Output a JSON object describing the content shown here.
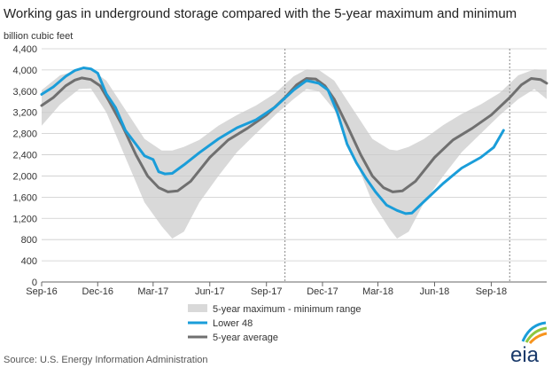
{
  "chart_data": {
    "type": "area",
    "title": "Working gas in underground storage compared with the 5-year maximum and minimum",
    "ylabel": "billion cubic feet",
    "ylim": [
      0,
      4400
    ],
    "ytick_labels": [
      "0",
      "400",
      "800",
      "1,200",
      "1,600",
      "2,000",
      "2,400",
      "2,800",
      "3,200",
      "3,600",
      "4,000",
      "4,400"
    ],
    "xlim": [
      "2016-09-01",
      "2018-11-30"
    ],
    "xtick_labels": [
      {
        "date": "2016-09-01",
        "label": "Sep-16"
      },
      {
        "date": "2016-12-01",
        "label": "Dec-16"
      },
      {
        "date": "2017-03-01",
        "label": "Mar-17"
      },
      {
        "date": "2017-06-01",
        "label": "Jun-17"
      },
      {
        "date": "2017-09-01",
        "label": "Sep-17"
      },
      {
        "date": "2017-12-01",
        "label": "Dec-17"
      },
      {
        "date": "2018-03-01",
        "label": "Mar-18"
      },
      {
        "date": "2018-06-01",
        "label": "Jun-18"
      },
      {
        "date": "2018-09-01",
        "label": "Sep-18"
      }
    ],
    "grid": "horizontal",
    "legend_position": "bottom",
    "vertical_markers": [
      "2017-10-01",
      "2018-10-01"
    ],
    "range": {
      "name": "5-year maximum - minimum range",
      "color": "#d9d9d9",
      "points": [
        {
          "x": "2016-09-01",
          "min": 2950,
          "max": 3620
        },
        {
          "x": "2016-10-01",
          "min": 3350,
          "max": 3900
        },
        {
          "x": "2016-11-01",
          "min": 3640,
          "max": 4000
        },
        {
          "x": "2016-11-20",
          "min": 3650,
          "max": 4010
        },
        {
          "x": "2016-12-15",
          "min": 3200,
          "max": 3800
        },
        {
          "x": "2017-01-15",
          "min": 2350,
          "max": 3250
        },
        {
          "x": "2017-02-15",
          "min": 1500,
          "max": 2700
        },
        {
          "x": "2017-03-15",
          "min": 1050,
          "max": 2480
        },
        {
          "x": "2017-04-01",
          "min": 820,
          "max": 2480
        },
        {
          "x": "2017-04-20",
          "min": 950,
          "max": 2550
        },
        {
          "x": "2017-05-15",
          "min": 1500,
          "max": 2680
        },
        {
          "x": "2017-06-15",
          "min": 2000,
          "max": 2950
        },
        {
          "x": "2017-07-15",
          "min": 2450,
          "max": 3150
        },
        {
          "x": "2017-08-15",
          "min": 2800,
          "max": 3330
        },
        {
          "x": "2017-09-15",
          "min": 3150,
          "max": 3560
        },
        {
          "x": "2017-10-15",
          "min": 3450,
          "max": 3880
        },
        {
          "x": "2017-11-05",
          "min": 3640,
          "max": 4010
        },
        {
          "x": "2017-11-25",
          "min": 3600,
          "max": 4000
        },
        {
          "x": "2017-12-20",
          "min": 3250,
          "max": 3800
        },
        {
          "x": "2018-01-20",
          "min": 2400,
          "max": 3250
        },
        {
          "x": "2018-02-20",
          "min": 1500,
          "max": 2700
        },
        {
          "x": "2018-03-20",
          "min": 1000,
          "max": 2500
        },
        {
          "x": "2018-04-01",
          "min": 820,
          "max": 2480
        },
        {
          "x": "2018-04-20",
          "min": 950,
          "max": 2550
        },
        {
          "x": "2018-05-15",
          "min": 1500,
          "max": 2700
        },
        {
          "x": "2018-06-15",
          "min": 2000,
          "max": 2960
        },
        {
          "x": "2018-07-15",
          "min": 2450,
          "max": 3170
        },
        {
          "x": "2018-08-15",
          "min": 2800,
          "max": 3350
        },
        {
          "x": "2018-09-15",
          "min": 3150,
          "max": 3570
        },
        {
          "x": "2018-10-15",
          "min": 3450,
          "max": 3900
        },
        {
          "x": "2018-11-10",
          "min": 3640,
          "max": 4010
        },
        {
          "x": "2018-11-30",
          "min": 3450,
          "max": 4000
        }
      ]
    },
    "series": [
      {
        "name": "Lower 48",
        "color": "#1a9dd9",
        "points": [
          {
            "x": "2016-09-01",
            "y": 3540
          },
          {
            "x": "2016-09-20",
            "y": 3680
          },
          {
            "x": "2016-10-10",
            "y": 3880
          },
          {
            "x": "2016-10-25",
            "y": 3990
          },
          {
            "x": "2016-11-08",
            "y": 4040
          },
          {
            "x": "2016-11-20",
            "y": 4020
          },
          {
            "x": "2016-12-01",
            "y": 3940
          },
          {
            "x": "2016-12-15",
            "y": 3550
          },
          {
            "x": "2016-12-30",
            "y": 3290
          },
          {
            "x": "2017-01-15",
            "y": 2860
          },
          {
            "x": "2017-02-01",
            "y": 2600
          },
          {
            "x": "2017-02-15",
            "y": 2380
          },
          {
            "x": "2017-03-01",
            "y": 2310
          },
          {
            "x": "2017-03-10",
            "y": 2080
          },
          {
            "x": "2017-03-20",
            "y": 2040
          },
          {
            "x": "2017-04-01",
            "y": 2050
          },
          {
            "x": "2017-04-20",
            "y": 2210
          },
          {
            "x": "2017-05-15",
            "y": 2440
          },
          {
            "x": "2017-06-15",
            "y": 2700
          },
          {
            "x": "2017-07-15",
            "y": 2910
          },
          {
            "x": "2017-08-15",
            "y": 3060
          },
          {
            "x": "2017-09-15",
            "y": 3300
          },
          {
            "x": "2017-10-15",
            "y": 3620
          },
          {
            "x": "2017-11-05",
            "y": 3800
          },
          {
            "x": "2017-11-25",
            "y": 3750
          },
          {
            "x": "2017-12-10",
            "y": 3620
          },
          {
            "x": "2017-12-25",
            "y": 3200
          },
          {
            "x": "2018-01-10",
            "y": 2600
          },
          {
            "x": "2018-01-25",
            "y": 2250
          },
          {
            "x": "2018-02-10",
            "y": 1950
          },
          {
            "x": "2018-02-25",
            "y": 1700
          },
          {
            "x": "2018-03-15",
            "y": 1450
          },
          {
            "x": "2018-04-01",
            "y": 1350
          },
          {
            "x": "2018-04-15",
            "y": 1290
          },
          {
            "x": "2018-04-25",
            "y": 1300
          },
          {
            "x": "2018-05-15",
            "y": 1520
          },
          {
            "x": "2018-06-15",
            "y": 1860
          },
          {
            "x": "2018-07-15",
            "y": 2150
          },
          {
            "x": "2018-08-15",
            "y": 2350
          },
          {
            "x": "2018-09-05",
            "y": 2540
          },
          {
            "x": "2018-09-21",
            "y": 2860
          }
        ]
      },
      {
        "name": "5-year average",
        "color": "#707070",
        "points": [
          {
            "x": "2016-09-01",
            "y": 3330
          },
          {
            "x": "2016-09-20",
            "y": 3480
          },
          {
            "x": "2016-10-10",
            "y": 3700
          },
          {
            "x": "2016-10-25",
            "y": 3810
          },
          {
            "x": "2016-11-05",
            "y": 3850
          },
          {
            "x": "2016-11-20",
            "y": 3820
          },
          {
            "x": "2016-12-05",
            "y": 3700
          },
          {
            "x": "2016-12-20",
            "y": 3400
          },
          {
            "x": "2017-01-10",
            "y": 2950
          },
          {
            "x": "2017-02-01",
            "y": 2400
          },
          {
            "x": "2017-02-20",
            "y": 2000
          },
          {
            "x": "2017-03-10",
            "y": 1780
          },
          {
            "x": "2017-03-25",
            "y": 1700
          },
          {
            "x": "2017-04-10",
            "y": 1720
          },
          {
            "x": "2017-05-01",
            "y": 1900
          },
          {
            "x": "2017-06-01",
            "y": 2350
          },
          {
            "x": "2017-07-01",
            "y": 2680
          },
          {
            "x": "2017-08-01",
            "y": 2900
          },
          {
            "x": "2017-09-01",
            "y": 3150
          },
          {
            "x": "2017-10-01",
            "y": 3480
          },
          {
            "x": "2017-10-20",
            "y": 3720
          },
          {
            "x": "2017-11-05",
            "y": 3840
          },
          {
            "x": "2017-11-20",
            "y": 3830
          },
          {
            "x": "2017-12-05",
            "y": 3700
          },
          {
            "x": "2017-12-20",
            "y": 3450
          },
          {
            "x": "2018-01-10",
            "y": 2950
          },
          {
            "x": "2018-02-01",
            "y": 2400
          },
          {
            "x": "2018-02-20",
            "y": 2000
          },
          {
            "x": "2018-03-10",
            "y": 1780
          },
          {
            "x": "2018-03-25",
            "y": 1700
          },
          {
            "x": "2018-04-10",
            "y": 1720
          },
          {
            "x": "2018-05-01",
            "y": 1900
          },
          {
            "x": "2018-06-01",
            "y": 2350
          },
          {
            "x": "2018-07-01",
            "y": 2680
          },
          {
            "x": "2018-08-01",
            "y": 2900
          },
          {
            "x": "2018-09-01",
            "y": 3150
          },
          {
            "x": "2018-10-01",
            "y": 3480
          },
          {
            "x": "2018-10-20",
            "y": 3720
          },
          {
            "x": "2018-11-05",
            "y": 3840
          },
          {
            "x": "2018-11-20",
            "y": 3820
          },
          {
            "x": "2018-11-30",
            "y": 3750
          }
        ]
      }
    ]
  },
  "legend": {
    "range_label": "5-year maximum - minimum range",
    "lower48_label": "Lower 48",
    "average_label": "5-year average"
  },
  "source": "Source:  U.S. Energy Information Administration",
  "logo": {
    "text": "eia",
    "color": "#1a3a6b",
    "accent_colors": [
      "#1a9dd9",
      "#8dc63f",
      "#f7941d"
    ]
  }
}
